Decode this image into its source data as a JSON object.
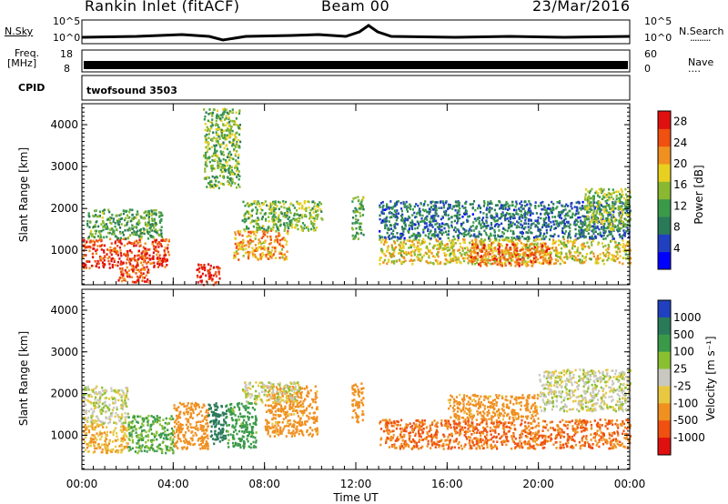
{
  "header": {
    "station": "Rankin Inlet (fitACF)",
    "beam": "Beam 00",
    "date": "23/Mar/2016"
  },
  "strip_labels": {
    "nsky": "N.Sky",
    "nsearch": "N.Search",
    "nsearch_dots": "·········",
    "freq": "Freq.",
    "mhz": "[MHz]",
    "nave": "Nave",
    "nave_dots": "····",
    "cpid": "CPID",
    "cpid_value": "twofsound 3503",
    "noise_ticks_left": [
      "10^5",
      "10^0"
    ],
    "noise_ticks_right": [
      "10^5",
      "10^0"
    ],
    "freq_ticks": [
      "18",
      "8"
    ],
    "nave_ticks": [
      "60",
      "0"
    ]
  },
  "colors": {
    "power_scale": [
      "#0000ff",
      "#2040c0",
      "#2a7a5a",
      "#3a9a4a",
      "#8ab830",
      "#e8d020",
      "#f09020",
      "#f05010",
      "#e01010"
    ],
    "velocity_scale": [
      "#2040c0",
      "#2a7a5a",
      "#3a9a4a",
      "#8ac030",
      "#c8c8c0",
      "#e8c840",
      "#f09020",
      "#f05010",
      "#e01010"
    ]
  },
  "chart_data": [
    {
      "type": "heatmap",
      "name": "power",
      "ylabel": "Slant Range [km]",
      "ylim": [
        180,
        4500
      ],
      "yticks": [
        1000,
        2000,
        3000,
        4000
      ],
      "xlim": [
        0,
        24
      ],
      "colorbar_label": "Power [dB]",
      "colorbar_ticks": [
        "4",
        "8",
        "12",
        "16",
        "20",
        "24",
        "28"
      ],
      "colorbar_range": [
        0,
        30
      ],
      "patches": [
        {
          "t0": 0.0,
          "t1": 3.8,
          "r0": 600,
          "r1": 1300,
          "v": 26
        },
        {
          "t0": 0.2,
          "t1": 3.5,
          "r0": 1300,
          "r1": 2000,
          "v": 12
        },
        {
          "t0": 1.5,
          "t1": 3.0,
          "r0": 250,
          "r1": 600,
          "v": 25
        },
        {
          "t0": 5.0,
          "t1": 6.0,
          "r0": 200,
          "r1": 700,
          "v": 28
        },
        {
          "t0": 6.6,
          "t1": 9.0,
          "r0": 800,
          "r1": 1500,
          "v": 21
        },
        {
          "t0": 7.0,
          "t1": 10.5,
          "r0": 1500,
          "r1": 2200,
          "v": 14
        },
        {
          "t0": 11.8,
          "t1": 12.3,
          "r0": 1300,
          "r1": 2300,
          "v": 12
        },
        {
          "t0": 13.0,
          "t1": 24.0,
          "r0": 700,
          "r1": 1300,
          "v": 18
        },
        {
          "t0": 13.0,
          "t1": 24.0,
          "r0": 1300,
          "r1": 2200,
          "v": 8
        },
        {
          "t0": 17.0,
          "t1": 20.5,
          "r0": 650,
          "r1": 1200,
          "v": 24
        },
        {
          "t0": 22.0,
          "t1": 24.0,
          "r0": 1500,
          "r1": 2500,
          "v": 15
        },
        {
          "t0": 5.3,
          "t1": 6.9,
          "r0": 2500,
          "r1": 4400,
          "v": 14
        }
      ]
    },
    {
      "type": "heatmap",
      "name": "velocity",
      "ylabel": "Slant Range [km]",
      "ylim": [
        180,
        4500
      ],
      "yticks": [
        1000,
        2000,
        3000,
        4000
      ],
      "xlim": [
        0,
        24
      ],
      "xticks": [
        "00:00",
        "04:00",
        "08:00",
        "12:00",
        "16:00",
        "20:00",
        "00:00"
      ],
      "xlabel": "Time UT",
      "colorbar_label": "Velocity [m s⁻¹]",
      "colorbar_ticks": [
        "1000",
        "500",
        "100",
        "25",
        "-25",
        "-100",
        "-500",
        "-1000"
      ],
      "patches": [
        {
          "t0": 0.0,
          "t1": 2.0,
          "r0": 600,
          "r1": 1300,
          "v": -100
        },
        {
          "t0": 0.0,
          "t1": 2.0,
          "r0": 1300,
          "r1": 2200,
          "v": 0
        },
        {
          "t0": 2.0,
          "t1": 4.0,
          "r0": 600,
          "r1": 1500,
          "v": 100
        },
        {
          "t0": 4.0,
          "t1": 5.5,
          "r0": 700,
          "r1": 1800,
          "v": -300
        },
        {
          "t0": 5.5,
          "t1": 6.3,
          "r0": 800,
          "r1": 1800,
          "v": 800
        },
        {
          "t0": 6.3,
          "t1": 7.6,
          "r0": 700,
          "r1": 1800,
          "v": 150
        },
        {
          "t0": 8.0,
          "t1": 10.3,
          "r0": 1000,
          "r1": 2200,
          "v": -150
        },
        {
          "t0": 7.0,
          "t1": 9.5,
          "r0": 1800,
          "r1": 2300,
          "v": 0
        },
        {
          "t0": 11.8,
          "t1": 12.3,
          "r0": 1300,
          "r1": 2300,
          "v": -400
        },
        {
          "t0": 13.0,
          "t1": 24.0,
          "r0": 700,
          "r1": 1400,
          "v": -500
        },
        {
          "t0": 20.0,
          "t1": 24.0,
          "r0": 1600,
          "r1": 2600,
          "v": 0
        },
        {
          "t0": 16.0,
          "t1": 20.0,
          "r0": 1400,
          "r1": 2000,
          "v": -150
        }
      ]
    }
  ]
}
